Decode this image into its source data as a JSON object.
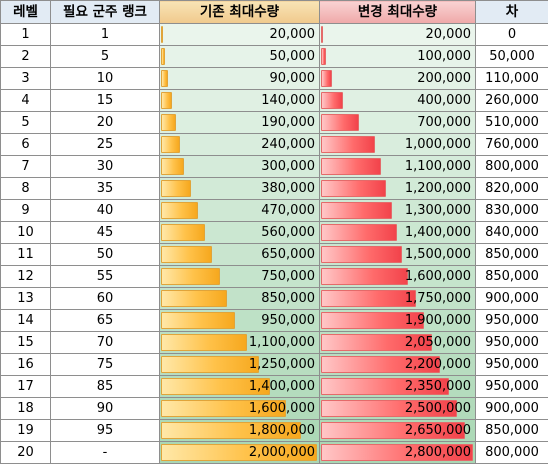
{
  "headers": [
    "레벨",
    "필요 군주 랭크",
    "기존 최대수량",
    "변경 최대수량",
    "차"
  ],
  "rows": [
    {
      "level": "1",
      "rank": "1",
      "base": "20,000",
      "new": "20,000",
      "diff": "0",
      "base_n": 20000,
      "new_n": 20000
    },
    {
      "level": "2",
      "rank": "5",
      "base": "50,000",
      "new": "100,000",
      "diff": "50,000",
      "base_n": 50000,
      "new_n": 100000
    },
    {
      "level": "3",
      "rank": "10",
      "base": "90,000",
      "new": "200,000",
      "diff": "110,000",
      "base_n": 90000,
      "new_n": 200000
    },
    {
      "level": "4",
      "rank": "15",
      "base": "140,000",
      "new": "400,000",
      "diff": "260,000",
      "base_n": 140000,
      "new_n": 400000
    },
    {
      "level": "5",
      "rank": "20",
      "base": "190,000",
      "new": "700,000",
      "diff": "510,000",
      "base_n": 190000,
      "new_n": 700000
    },
    {
      "level": "6",
      "rank": "25",
      "base": "240,000",
      "new": "1,000,000",
      "diff": "760,000",
      "base_n": 240000,
      "new_n": 1000000
    },
    {
      "level": "7",
      "rank": "30",
      "base": "300,000",
      "new": "1,100,000",
      "diff": "800,000",
      "base_n": 300000,
      "new_n": 1100000
    },
    {
      "level": "8",
      "rank": "35",
      "base": "380,000",
      "new": "1,200,000",
      "diff": "820,000",
      "base_n": 380000,
      "new_n": 1200000
    },
    {
      "level": "9",
      "rank": "40",
      "base": "470,000",
      "new": "1,300,000",
      "diff": "830,000",
      "base_n": 470000,
      "new_n": 1300000
    },
    {
      "level": "10",
      "rank": "45",
      "base": "560,000",
      "new": "1,400,000",
      "diff": "840,000",
      "base_n": 560000,
      "new_n": 1400000
    },
    {
      "level": "11",
      "rank": "50",
      "base": "650,000",
      "new": "1,500,000",
      "diff": "850,000",
      "base_n": 650000,
      "new_n": 1500000
    },
    {
      "level": "12",
      "rank": "55",
      "base": "750,000",
      "new": "1,600,000",
      "diff": "850,000",
      "base_n": 750000,
      "new_n": 1600000
    },
    {
      "level": "13",
      "rank": "60",
      "base": "850,000",
      "new": "1,750,000",
      "diff": "900,000",
      "base_n": 850000,
      "new_n": 1750000
    },
    {
      "level": "14",
      "rank": "65",
      "base": "950,000",
      "new": "1,900,000",
      "diff": "950,000",
      "base_n": 950000,
      "new_n": 1900000
    },
    {
      "level": "15",
      "rank": "70",
      "base": "1,100,000",
      "new": "2,050,000",
      "diff": "950,000",
      "base_n": 1100000,
      "new_n": 2050000
    },
    {
      "level": "16",
      "rank": "75",
      "base": "1,250,000",
      "new": "2,200,000",
      "diff": "950,000",
      "base_n": 1250000,
      "new_n": 2200000
    },
    {
      "level": "17",
      "rank": "85",
      "base": "1,400,000",
      "new": "2,350,000",
      "diff": "950,000",
      "base_n": 1400000,
      "new_n": 2350000
    },
    {
      "level": "18",
      "rank": "90",
      "base": "1,600,000",
      "new": "2,500,000",
      "diff": "900,000",
      "base_n": 1600000,
      "new_n": 2500000
    },
    {
      "level": "19",
      "rank": "95",
      "base": "1,800,000",
      "new": "2,650,000",
      "diff": "850,000",
      "base_n": 1800000,
      "new_n": 2650000
    },
    {
      "level": "20",
      "rank": "-",
      "base": "2,000,000",
      "new": "2,800,000",
      "diff": "800,000",
      "base_n": 2000000,
      "new_n": 2800000
    }
  ],
  "colors": {
    "base_bar": "#ffc24a",
    "new_bar": "#ff6b6b",
    "highlight_bg": "#c6e6cf",
    "header_plain": "#e2ebf4"
  }
}
